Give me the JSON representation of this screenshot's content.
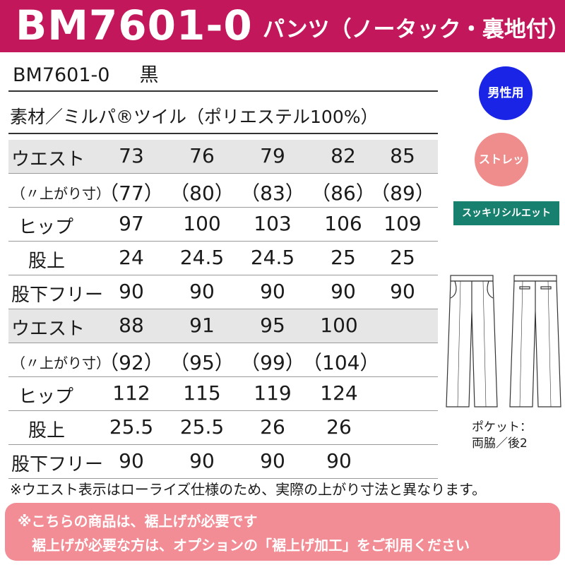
{
  "header": {
    "code": "BM7601-0",
    "subtitle": "パンツ（ノータック・裏地付）"
  },
  "product": {
    "code": "BM7601-0",
    "color": "黒",
    "material": "素材／ミルパ®ツイル（ポリエステル100%）"
  },
  "size_table_1": {
    "waist": {
      "label": "ウエスト",
      "values": [
        "73",
        "76",
        "79",
        "82",
        "85"
      ]
    },
    "finished": {
      "label": "（〃上がり寸）",
      "values": [
        "（77）",
        "（80）",
        "（83）",
        "（86）",
        "（89）"
      ]
    },
    "hip": {
      "label": "ヒップ",
      "values": [
        "97",
        "100",
        "103",
        "106",
        "109"
      ]
    },
    "rise": {
      "label": "股上",
      "values": [
        "24",
        "24.5",
        "24.5",
        "25",
        "25"
      ]
    },
    "inseam": {
      "label": "股下フリー",
      "values": [
        "90",
        "90",
        "90",
        "90",
        "90"
      ]
    }
  },
  "size_table_2": {
    "waist": {
      "label": "ウエスト",
      "values": [
        "88",
        "91",
        "95",
        "100"
      ]
    },
    "finished": {
      "label": "（〃上がり寸）",
      "values": [
        "（92）",
        "（95）",
        "（99）",
        "（104）"
      ]
    },
    "hip": {
      "label": "ヒップ",
      "values": [
        "112",
        "115",
        "119",
        "124"
      ]
    },
    "rise": {
      "label": "股上",
      "values": [
        "25.5",
        "25.5",
        "26",
        "26"
      ]
    },
    "inseam": {
      "label": "股下フリー",
      "values": [
        "90",
        "90",
        "90",
        "90"
      ]
    }
  },
  "badges": {
    "male": "男性用",
    "stretch": "ストレッチ",
    "slim": "スッキリシルエット"
  },
  "pocket": {
    "line1": "ポケット：",
    "line2": "両脇／後2"
  },
  "note": "※ウエスト表示はローライズ仕様のため、実際の上がり寸法と異なります。",
  "footer": {
    "line1": "※こちらの商品は、裾上げが必要です",
    "line2": "裾上げが必要な方は、オプションの「裾上げ加工」をご利用ください"
  },
  "colors": {
    "header_bg": "#c2185b",
    "male_badge": "#1a24e6",
    "stretch_badge": "#ef8c8c",
    "slim_badge": "#17806e",
    "footer_bg": "#f28c95",
    "shaded_row": "#e6e6e6"
  }
}
